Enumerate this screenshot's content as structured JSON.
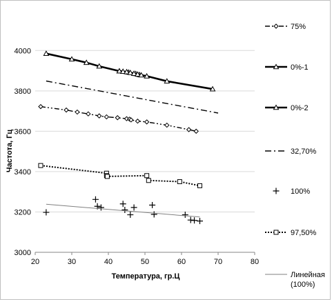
{
  "chart_data": {
    "type": "scatter",
    "xlabel": "Температура, гр.Ц",
    "ylabel": "Частота, Гц",
    "xlim": [
      20,
      80
    ],
    "ylim": [
      3000,
      4100
    ],
    "xticks": [
      "20",
      "30",
      "40",
      "50",
      "60",
      "70",
      "80"
    ],
    "yticks": [
      "3000",
      "3200",
      "3400",
      "3600",
      "3800",
      "4000"
    ],
    "grid": "horizontal",
    "legend_position": "right",
    "series": [
      {
        "name": "75%",
        "style": "dash-dot-dot",
        "marker": "diamond",
        "lineWidth": 1.4,
        "x": [
          21.5,
          28.5,
          31.5,
          34.5,
          37.5,
          39.5,
          42.5,
          45,
          45.8,
          46.2,
          48,
          50.5,
          56,
          62,
          64
        ],
        "y": [
          3722,
          3705,
          3695,
          3686,
          3676,
          3671,
          3667,
          3662,
          3660,
          3656,
          3650,
          3646,
          3630,
          3608,
          3600
        ]
      },
      {
        "name": "0%-1",
        "style": "solid",
        "marker": "triangle",
        "lineWidth": 2.6,
        "x": [
          23,
          30,
          34,
          37.5,
          43,
          45.5,
          47.5,
          48.5,
          50.5,
          56,
          68.5
        ],
        "y": [
          3985,
          3957,
          3940,
          3922,
          3898,
          3892,
          3885,
          3880,
          3873,
          3848,
          3809
        ]
      },
      {
        "name": "0%-2",
        "style": "solid",
        "marker": "triangle",
        "lineWidth": 2.6,
        "x": [
          43,
          44,
          45,
          46,
          47,
          48,
          49
        ],
        "y": [
          3898,
          3896,
          3894,
          3890,
          3886,
          3882,
          3878
        ]
      },
      {
        "name": "32,70%",
        "style": "dash-dot",
        "marker": "none",
        "lineWidth": 1.4,
        "x": [
          23,
          70
        ],
        "y": [
          3849,
          3690
        ]
      },
      {
        "name": "100%",
        "style": "none",
        "marker": "plus",
        "lineWidth": 1,
        "x": [
          23,
          36.5,
          37,
          38,
          44,
          44.5,
          46,
          47,
          52,
          52.5,
          61,
          62.5,
          63.5,
          65
        ],
        "y": [
          3198,
          3262,
          3228,
          3222,
          3240,
          3210,
          3186,
          3222,
          3234,
          3188,
          3186,
          3160,
          3158,
          3155
        ]
      },
      {
        "name": "97,50%",
        "style": "dotted",
        "marker": "square",
        "lineWidth": 2,
        "x": [
          21.5,
          39.5,
          39.5,
          39.7,
          50.5,
          51,
          59.5,
          65
        ],
        "y": [
          3430,
          3392,
          3380,
          3376,
          3380,
          3356,
          3350,
          3330
        ]
      },
      {
        "name": "Линейная (100%)",
        "style": "solid",
        "marker": "none",
        "lineWidth": 1,
        "color": "#7f7f7f",
        "x": [
          23,
          65
        ],
        "y": [
          3238,
          3175
        ]
      }
    ]
  }
}
